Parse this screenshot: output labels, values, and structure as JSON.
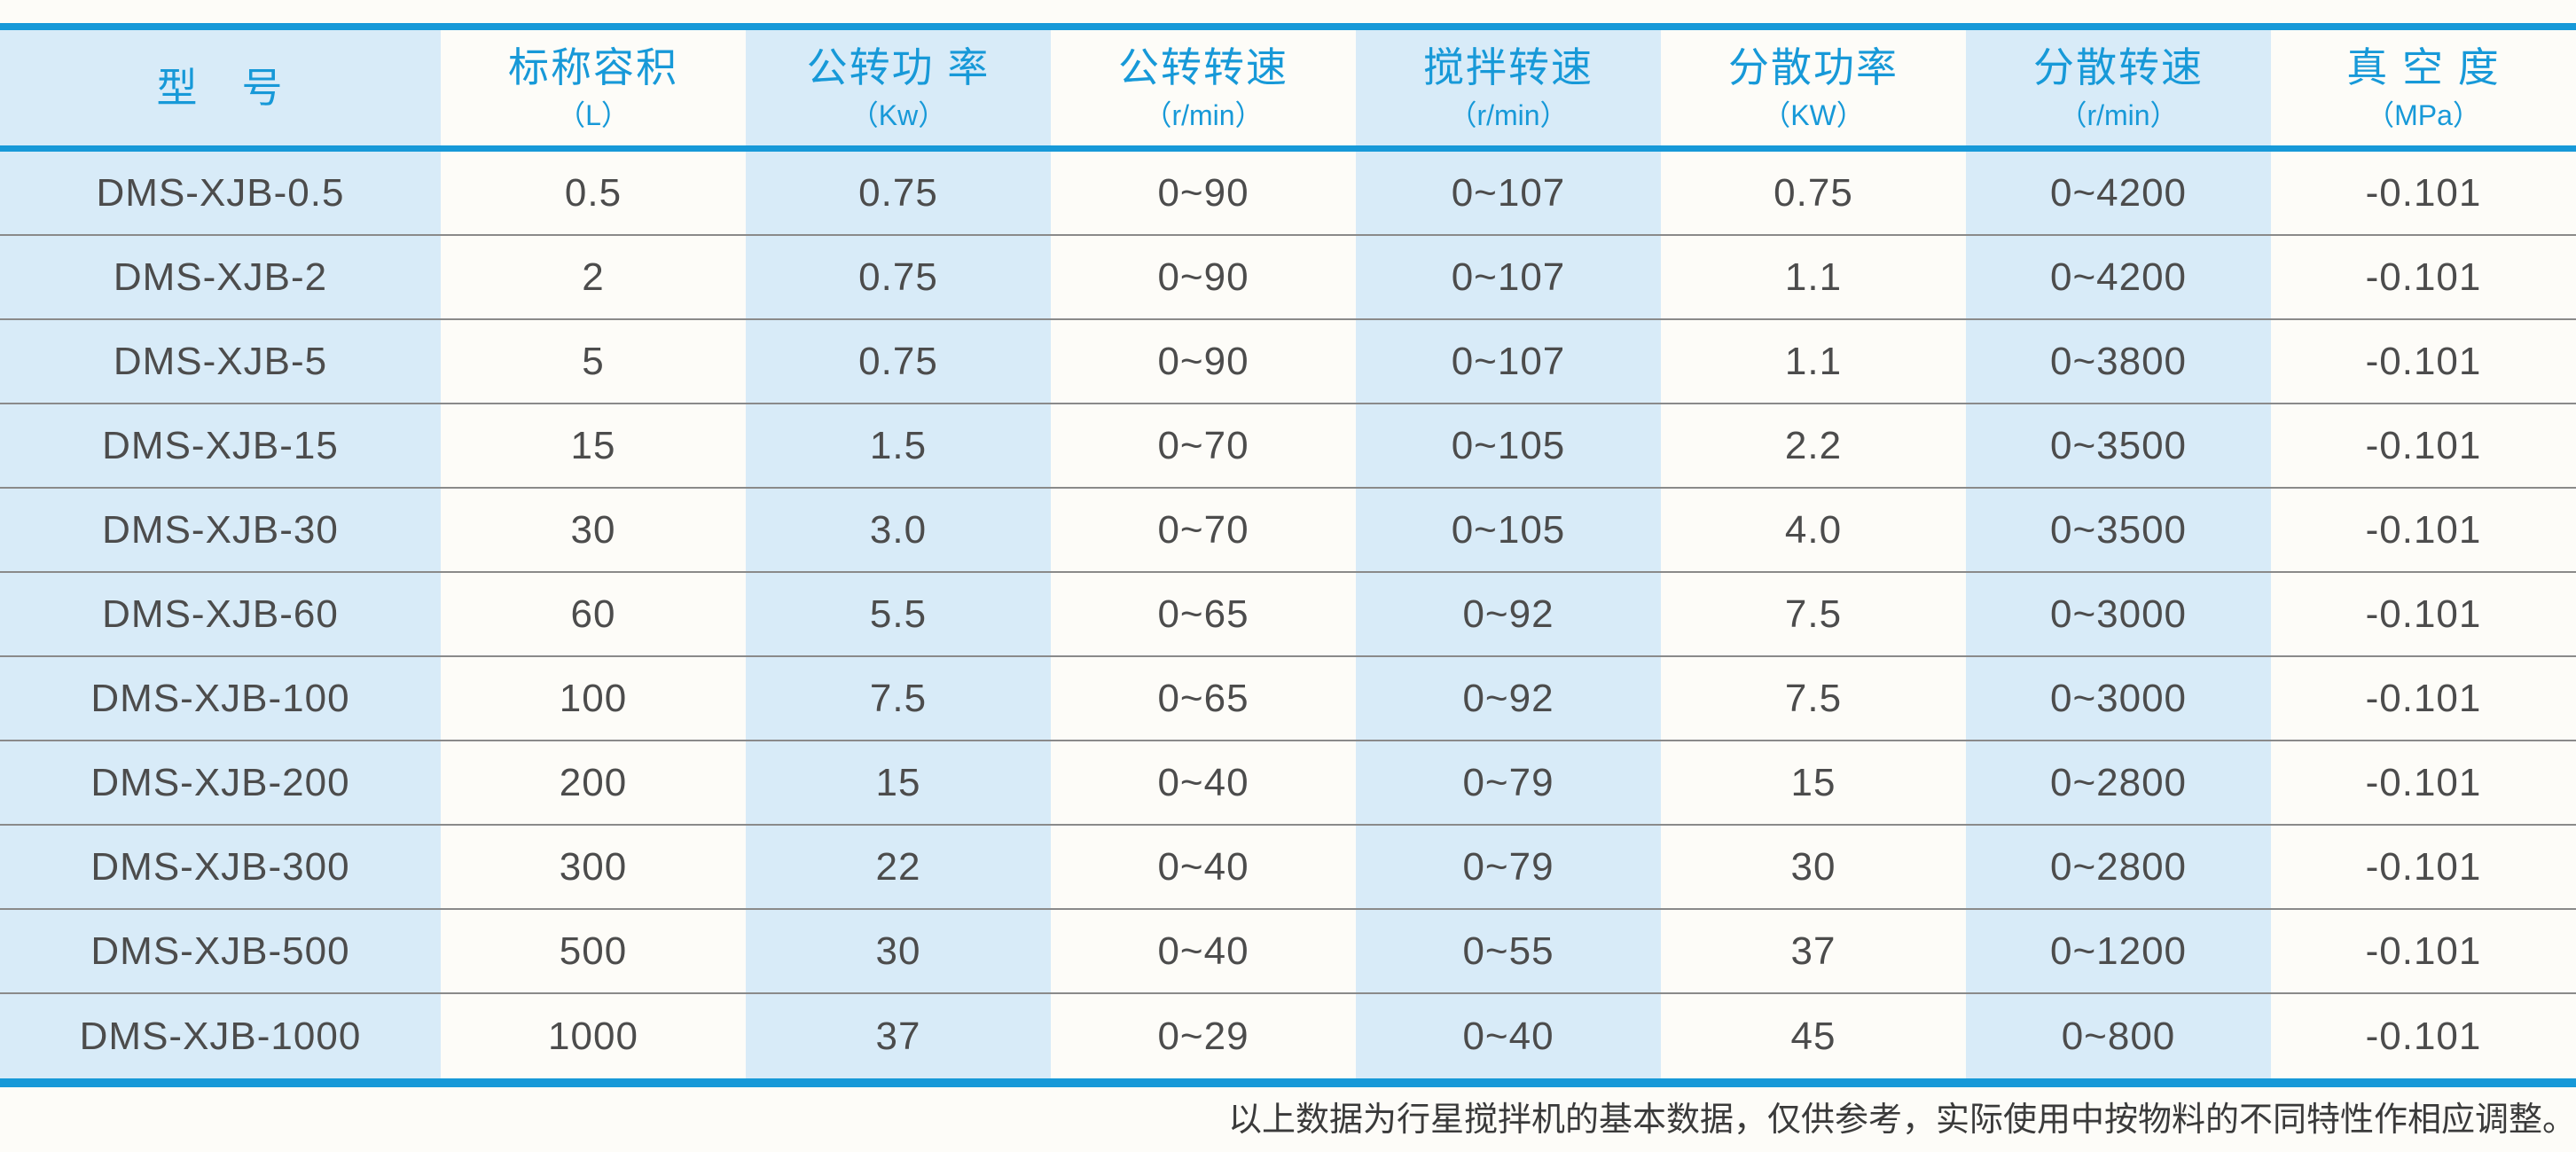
{
  "colors": {
    "accent": "#1799D8",
    "stripe": "#D8EBF8",
    "cell_text": "#4C4C4C",
    "separator": "#8A8A8A",
    "footnote_text": "#3A3A3A",
    "page_bg": "#FDFCF8"
  },
  "chart_data": {
    "type": "table",
    "columns": [
      {
        "title": "型　号",
        "unit": ""
      },
      {
        "title": "标称容积",
        "unit": "（L）"
      },
      {
        "title": "公转功 率",
        "unit": "（Kw）"
      },
      {
        "title": "公转转速",
        "unit": "（r/min）"
      },
      {
        "title": "搅拌转速",
        "unit": "（r/min）"
      },
      {
        "title": "分散功率",
        "unit": "（KW）"
      },
      {
        "title": "分散转速",
        "unit": "（r/min）"
      },
      {
        "title": "真 空 度",
        "unit": "（MPa）"
      }
    ],
    "rows": [
      [
        "DMS-XJB-0.5",
        "0.5",
        "0.75",
        "0~90",
        "0~107",
        "0.75",
        "0~4200",
        "-0.101"
      ],
      [
        "DMS-XJB-2",
        "2",
        "0.75",
        "0~90",
        "0~107",
        "1.1",
        "0~4200",
        "-0.101"
      ],
      [
        "DMS-XJB-5",
        "5",
        "0.75",
        "0~90",
        "0~107",
        "1.1",
        "0~3800",
        "-0.101"
      ],
      [
        "DMS-XJB-15",
        "15",
        "1.5",
        "0~70",
        "0~105",
        "2.2",
        "0~3500",
        "-0.101"
      ],
      [
        "DMS-XJB-30",
        "30",
        "3.0",
        "0~70",
        "0~105",
        "4.0",
        "0~3500",
        "-0.101"
      ],
      [
        "DMS-XJB-60",
        "60",
        "5.5",
        "0~65",
        "0~92",
        "7.5",
        "0~3000",
        "-0.101"
      ],
      [
        "DMS-XJB-100",
        "100",
        "7.5",
        "0~65",
        "0~92",
        "7.5",
        "0~3000",
        "-0.101"
      ],
      [
        "DMS-XJB-200",
        "200",
        "15",
        "0~40",
        "0~79",
        "15",
        "0~2800",
        "-0.101"
      ],
      [
        "DMS-XJB-300",
        "300",
        "22",
        "0~40",
        "0~79",
        "30",
        "0~2800",
        "-0.101"
      ],
      [
        "DMS-XJB-500",
        "500",
        "30",
        "0~40",
        "0~55",
        "37",
        "0~1200",
        "-0.101"
      ],
      [
        "DMS-XJB-1000",
        "1000",
        "37",
        "0~29",
        "0~40",
        "45",
        "0~800",
        "-0.101"
      ]
    ],
    "title": "",
    "layout": {
      "striped_columns": "odd",
      "grid": "horizontal-only"
    }
  },
  "footnote": "以上数据为行星搅拌机的基本数据，仅供参考，实际使用中按物料的不同特性作相应调整。"
}
